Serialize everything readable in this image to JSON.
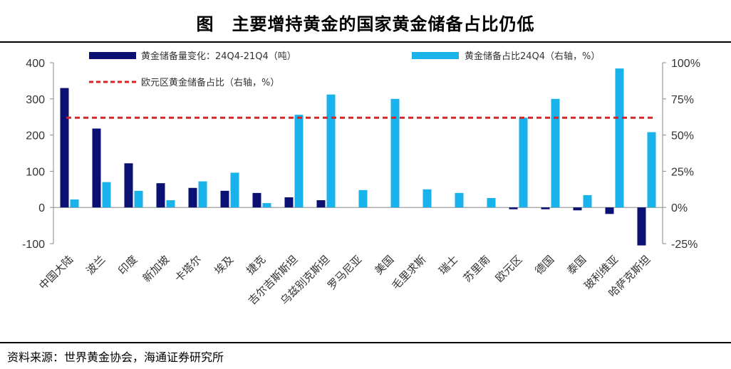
{
  "title": "图　主要增持黄金的国家黄金储备占比仍低",
  "source": "资料来源：世界黄金协会，海通证券研究所",
  "chart_data": {
    "type": "bar",
    "categories": [
      "中国大陆",
      "波兰",
      "印度",
      "新加坡",
      "卡塔尔",
      "埃及",
      "捷克",
      "吉尔吉斯斯坦",
      "乌兹别克斯坦",
      "罗马尼亚",
      "美国",
      "毛里求斯",
      "瑞士",
      "苏里南",
      "欧元区",
      "德国",
      "泰国",
      "玻利维亚",
      "哈萨克斯坦"
    ],
    "series": [
      {
        "name": "黄金储备量变化：24Q4-21Q4（吨）",
        "axis": "left",
        "color": "#0a1172",
        "values": [
          330,
          218,
          122,
          67,
          54,
          46,
          40,
          28,
          20,
          0,
          0,
          0,
          0,
          0,
          -5,
          -5,
          -8,
          -18,
          -105
        ]
      },
      {
        "name": "黄金储备占比24Q4（右轴，%）",
        "axis": "right",
        "color": "#1ab2ea",
        "values": [
          5.5,
          17.5,
          11.5,
          5,
          18,
          24,
          3,
          64,
          78,
          12,
          75,
          12.5,
          10,
          6.5,
          62,
          75,
          8.5,
          96,
          52
        ]
      },
      {
        "name": "欧元区黄金储备占比（右轴，%）",
        "axis": "right",
        "type": "line",
        "style": "dashed",
        "color": "#e02020",
        "value": 62
      }
    ],
    "y_left": {
      "min": -100,
      "max": 400,
      "ticks": [
        "-100",
        "0",
        "100",
        "200",
        "300",
        "400"
      ]
    },
    "y_right": {
      "min": -25,
      "max": 100,
      "ticks": [
        "-25%",
        "0%",
        "25%",
        "50%",
        "75%",
        "100%"
      ]
    },
    "legend_position": "top",
    "grid": false
  }
}
